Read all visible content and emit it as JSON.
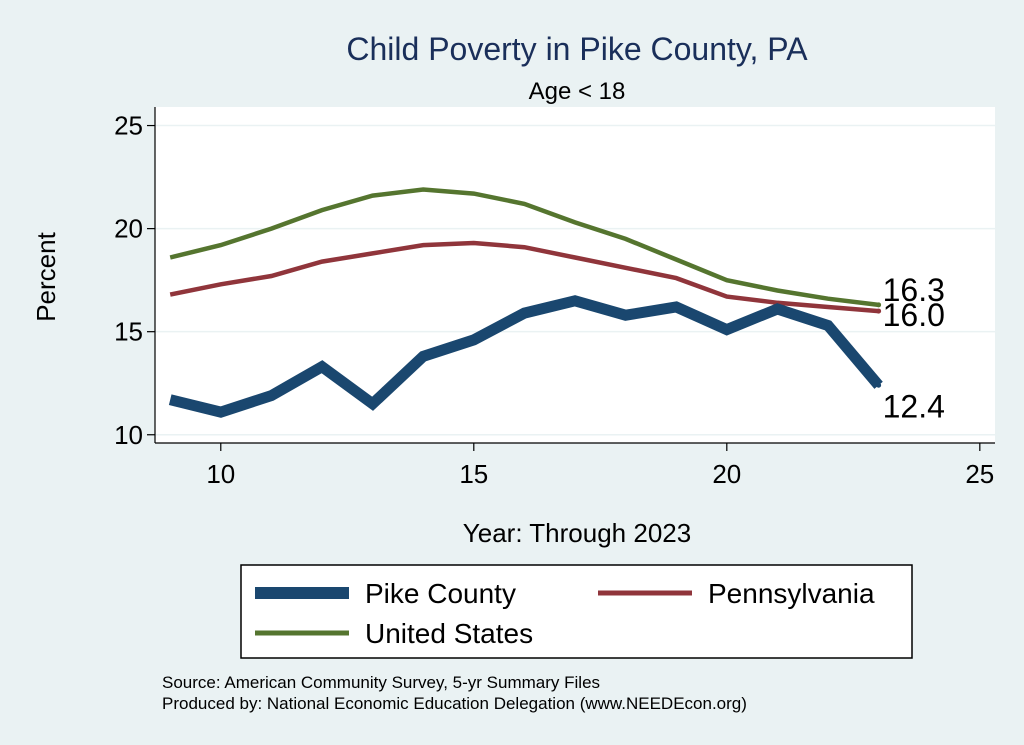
{
  "chart_data": {
    "type": "line",
    "title": "Child Poverty in Pike County, PA",
    "subtitle": "Age < 18",
    "xlabel": "Year: Through 2023",
    "ylabel": "Percent",
    "xlim": [
      8.7,
      25.3
    ],
    "ylim": [
      9.6,
      25.9
    ],
    "xticks": [
      10,
      15,
      20,
      25
    ],
    "yticks": [
      10,
      15,
      20,
      25
    ],
    "grid": true,
    "legend_position": "bottom",
    "x": [
      9,
      10,
      11,
      12,
      13,
      14,
      15,
      16,
      17,
      18,
      19,
      20,
      21,
      22,
      23
    ],
    "series": [
      {
        "name": "Pike County",
        "color": "#1a476f",
        "values": [
          11.7,
          11.1,
          11.9,
          13.3,
          11.5,
          13.8,
          14.6,
          15.9,
          16.5,
          15.8,
          16.2,
          15.1,
          16.1,
          15.3,
          12.4
        ],
        "end_label": "12.4"
      },
      {
        "name": "Pennsylvania",
        "color": "#90353b",
        "values": [
          16.8,
          17.3,
          17.7,
          18.4,
          18.8,
          19.2,
          19.3,
          19.1,
          18.6,
          18.1,
          17.6,
          16.7,
          16.4,
          16.2,
          16.0
        ],
        "end_label": "16.0"
      },
      {
        "name": "United States",
        "color": "#55752f",
        "values": [
          18.6,
          19.2,
          20.0,
          20.9,
          21.6,
          21.9,
          21.7,
          21.2,
          20.3,
          19.5,
          18.5,
          17.5,
          17.0,
          16.6,
          16.3
        ],
        "end_label": "16.3"
      }
    ]
  },
  "footer": {
    "source": "Source: American Community Survey, 5-yr Summary Files",
    "produced_by": "Produced by: National Economic Education Delegation (www.NEEDEcon.org)"
  }
}
